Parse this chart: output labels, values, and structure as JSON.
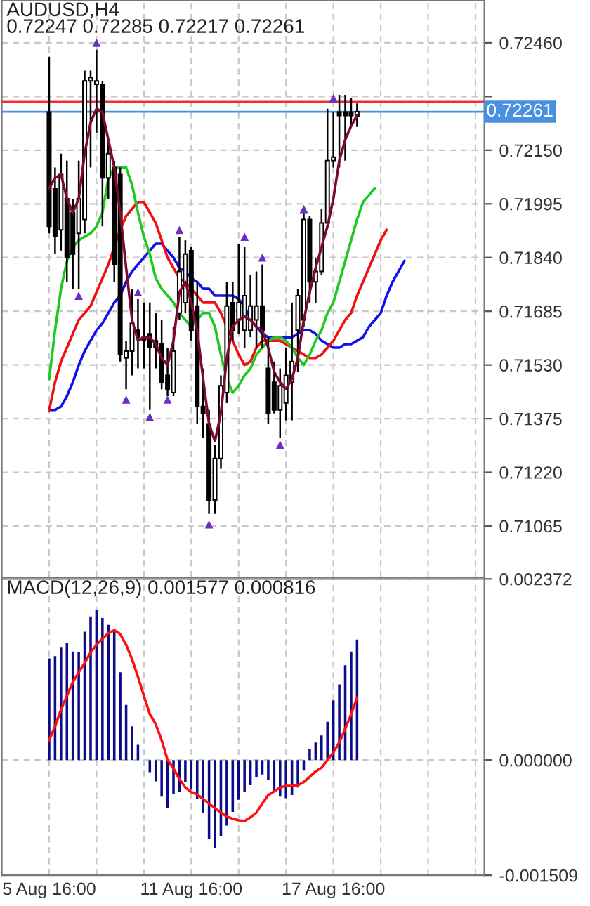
{
  "chart_data": [
    {
      "type": "candlestick",
      "title": "AUDUSD,H4",
      "subtitle": "0.72247 0.72285 0.72217 0.72261",
      "color": "#000000",
      "categories": [
        null,
        null,
        null,
        null,
        null,
        null,
        null,
        null,
        null,
        null,
        null,
        null,
        null,
        null,
        null,
        null,
        null,
        null,
        null,
        null,
        null,
        null,
        null,
        null,
        null,
        null,
        null,
        null,
        null,
        null,
        null,
        null,
        null,
        null,
        null,
        null,
        null,
        null,
        null,
        null,
        null,
        null,
        null,
        null,
        null,
        null,
        null,
        null,
        null,
        null,
        null,
        null,
        null,
        null,
        null,
        null,
        null,
        null,
        null,
        null,
        null,
        null,
        null,
        null,
        null,
        null,
        null,
        null,
        null,
        null,
        null,
        null,
        null,
        null
      ],
      "ohlc": [
        [
          0.7226,
          0.7242,
          0.7191,
          0.7193
        ],
        [
          0.7204,
          0.721,
          0.7185,
          0.719
        ],
        [
          0.7192,
          0.7214,
          0.7186,
          0.7208
        ],
        [
          0.7201,
          0.7212,
          0.7177,
          0.7184
        ],
        [
          0.7197,
          0.7201,
          0.7175,
          0.7185
        ],
        [
          0.7191,
          0.7212,
          0.7175,
          0.7201
        ],
        [
          0.7195,
          0.7238,
          0.7191,
          0.7235
        ],
        [
          0.7235,
          0.7238,
          0.721,
          0.7236
        ],
        [
          0.7234,
          0.7244,
          0.722,
          0.7235
        ],
        [
          0.7234,
          0.7235,
          0.7193,
          0.7207
        ],
        [
          0.7207,
          0.7218,
          0.7201,
          0.7214
        ],
        [
          0.721,
          0.7212,
          0.7177,
          0.7182
        ],
        [
          0.7208,
          0.721,
          0.7154,
          0.7156
        ],
        [
          0.7155,
          0.716,
          0.7146,
          0.7157
        ],
        [
          0.7157,
          0.7175,
          0.715,
          0.7165
        ],
        [
          0.7163,
          0.7172,
          0.7152,
          0.7161
        ],
        [
          0.7161,
          0.7171,
          0.7152,
          0.716
        ],
        [
          0.7162,
          0.7171,
          0.714,
          0.7158
        ],
        [
          0.716,
          0.7168,
          0.7152,
          0.7158
        ],
        [
          0.7159,
          0.7166,
          0.7146,
          0.7148
        ],
        [
          0.715,
          0.7158,
          0.7144,
          0.7146
        ],
        [
          0.7145,
          0.7164,
          0.7144,
          0.7157
        ],
        [
          0.7168,
          0.719,
          0.7166,
          0.718
        ],
        [
          0.7171,
          0.7189,
          0.7168,
          0.7185
        ],
        [
          0.7186,
          0.7187,
          0.716,
          0.7163
        ],
        [
          0.717,
          0.7177,
          0.7136,
          0.7141
        ],
        [
          0.7141,
          0.7152,
          0.7132,
          0.7139
        ],
        [
          0.7136,
          0.714,
          0.711,
          0.7114
        ],
        [
          0.7114,
          0.713,
          0.711,
          0.7126
        ],
        [
          0.7126,
          0.715,
          0.7123,
          0.7147
        ],
        [
          0.7145,
          0.7177,
          0.7142,
          0.717
        ],
        [
          0.7171,
          0.7177,
          0.716,
          0.7163
        ],
        [
          0.7166,
          0.7188,
          0.7162,
          0.7171
        ],
        [
          0.7163,
          0.7187,
          0.7158,
          0.7173
        ],
        [
          0.7163,
          0.7179,
          0.7161,
          0.717
        ],
        [
          0.7166,
          0.718,
          0.7158,
          0.717
        ],
        [
          0.717,
          0.7182,
          0.7158,
          0.7163
        ],
        [
          0.7152,
          0.7161,
          0.7136,
          0.7139
        ],
        [
          0.7148,
          0.7154,
          0.7139,
          0.714
        ],
        [
          0.714,
          0.7152,
          0.7132,
          0.7147
        ],
        [
          0.7142,
          0.7158,
          0.7137,
          0.715
        ],
        [
          0.7148,
          0.7171,
          0.7137,
          0.7154
        ],
        [
          0.7163,
          0.7175,
          0.7151,
          0.7173
        ],
        [
          0.7166,
          0.7197,
          0.7164,
          0.7195
        ],
        [
          0.7195,
          0.7196,
          0.7171,
          0.7177
        ],
        [
          0.7177,
          0.7184,
          0.7171,
          0.718
        ],
        [
          0.718,
          0.7198,
          0.7179,
          0.7194
        ],
        [
          0.7194,
          0.7227,
          0.7193,
          0.7212
        ],
        [
          0.7212,
          0.7226,
          0.721,
          0.7213
        ],
        [
          0.7226,
          0.7231,
          0.721,
          0.7225
        ],
        [
          0.7226,
          0.7231,
          0.7212,
          0.7225
        ],
        [
          0.7226,
          0.723,
          0.7222,
          0.7225
        ],
        [
          0.72247,
          0.72285,
          0.72217,
          0.72261
        ],
        null,
        null,
        null,
        null,
        null,
        null,
        null,
        null,
        null,
        null,
        null,
        null,
        null,
        null,
        null,
        null,
        null,
        null,
        null,
        null,
        null
      ],
      "series": [
        {
          "type": "line",
          "color": "#1010ee",
          "values": [
            0.714,
            0.714,
            0.7141,
            0.7144,
            0.7148,
            0.7153,
            0.7157,
            0.716,
            0.7163,
            0.7165,
            0.7168,
            0.7171,
            0.7173,
            0.7177,
            0.718,
            0.7182,
            0.7184,
            0.7186,
            0.7188,
            0.7188,
            0.7186,
            0.7184,
            0.7181,
            0.718,
            0.7178,
            0.7177,
            0.7175,
            0.7175,
            0.7173,
            0.7173,
            0.7173,
            0.7173,
            0.7172,
            0.717,
            0.7166,
            0.7164,
            0.7162,
            0.7161,
            0.7161,
            0.7161,
            0.7161,
            0.7161,
            0.7162,
            0.7163,
            0.7163,
            0.7162,
            0.716,
            0.7159,
            0.7158,
            0.7158,
            0.7159,
            0.7159,
            0.716,
            0.7161,
            0.7164,
            0.7166,
            0.7168,
            0.7173,
            0.7177,
            0.718,
            0.7183,
            null,
            null,
            null,
            null,
            null,
            null,
            null,
            null,
            null,
            null,
            null,
            null,
            null
          ]
        },
        {
          "type": "line",
          "color": "#f01010",
          "values": [
            0.714,
            0.7148,
            0.7154,
            0.7158,
            0.7162,
            0.7166,
            0.7168,
            0.717,
            0.7174,
            0.7178,
            0.7182,
            0.7187,
            0.7192,
            0.7196,
            0.7198,
            0.72,
            0.72,
            0.7197,
            0.7194,
            0.7189,
            0.7184,
            0.7181,
            0.7178,
            0.7177,
            0.7175,
            0.7173,
            0.7171,
            0.7171,
            0.7171,
            0.7168,
            0.7164,
            0.716,
            0.7156,
            0.7153,
            0.7154,
            0.7158,
            0.716,
            0.716,
            0.716,
            0.716,
            0.7159,
            0.7158,
            0.7157,
            0.7156,
            0.7155,
            0.7155,
            0.7156,
            0.7158,
            0.716,
            0.7163,
            0.7166,
            0.7168,
            0.7173,
            0.7177,
            0.7181,
            0.7185,
            0.7189,
            0.7192,
            null,
            null,
            null,
            null,
            null,
            null,
            null,
            null,
            null,
            null,
            null,
            null,
            null,
            null,
            null,
            null
          ]
        },
        {
          "type": "line",
          "color": "#1ec81e",
          "values": [
            0.7149,
            0.7163,
            0.7175,
            0.7183,
            0.7187,
            0.7189,
            0.719,
            0.7191,
            0.7193,
            0.7197,
            0.7207,
            0.721,
            0.721,
            0.721,
            0.7205,
            0.7197,
            0.719,
            0.7185,
            0.7178,
            0.7175,
            0.7173,
            0.7171,
            0.7168,
            0.7166,
            0.7164,
            0.7166,
            0.7168,
            0.7168,
            0.7164,
            0.7156,
            0.7149,
            0.7145,
            0.7147,
            0.715,
            0.7152,
            0.7156,
            0.7158,
            0.716,
            0.7161,
            0.7161,
            0.716,
            0.7158,
            0.7155,
            0.7153,
            0.7156,
            0.716,
            0.7163,
            0.7168,
            0.7171,
            0.7177,
            0.7183,
            0.7189,
            0.7195,
            0.72,
            0.7202,
            0.7204,
            null,
            null,
            null,
            null,
            null,
            null,
            null,
            null,
            null,
            null,
            null,
            null,
            null,
            null,
            null,
            null,
            null,
            null
          ]
        },
        {
          "type": "line",
          "color": "#7d0a2a",
          "values": [
            0.7204,
            0.7207,
            0.7208,
            0.7201,
            0.7197,
            0.7201,
            0.7214,
            0.7223,
            0.7227,
            0.7226,
            0.7218,
            0.721,
            0.7197,
            0.7181,
            0.7166,
            0.716,
            0.7161,
            0.7161,
            0.7159,
            0.7155,
            0.7153,
            0.716,
            0.7174,
            0.7177,
            0.7171,
            0.7163,
            0.7149,
            0.7136,
            0.7131,
            0.7139,
            0.7155,
            0.7164,
            0.7166,
            0.7167,
            0.7166,
            0.7164,
            0.7163,
            0.7158,
            0.7151,
            0.7148,
            0.7146,
            0.7149,
            0.7155,
            0.7166,
            0.7174,
            0.7181,
            0.7187,
            0.7193,
            0.7201,
            0.7212,
            0.7218,
            0.7222,
            0.7225,
            null,
            null,
            null,
            null,
            null,
            null,
            null,
            null,
            null,
            null,
            null,
            null,
            null,
            null,
            null,
            null,
            null,
            null,
            null,
            null,
            null
          ]
        },
        {
          "type": "scatter",
          "marker": "triangle",
          "color": "#6a30c0",
          "values": [
            null,
            null,
            null,
            null,
            null,
            null,
            null,
            null,
            0.7246,
            null,
            null,
            null,
            null,
            null,
            null,
            0.7174,
            null,
            null,
            null,
            null,
            null,
            null,
            0.7192,
            null,
            null,
            null,
            null,
            null,
            null,
            null,
            null,
            null,
            null,
            0.719,
            null,
            null,
            0.7184,
            null,
            null,
            null,
            null,
            null,
            null,
            0.7198,
            null,
            null,
            null,
            null,
            0.723,
            null,
            null,
            null,
            null,
            null,
            null,
            null,
            null,
            null,
            null,
            null,
            null,
            null,
            null,
            null,
            null,
            null,
            null,
            null,
            null,
            null,
            null,
            null,
            null,
            null
          ]
        },
        {
          "type": "scatter",
          "marker": "triangle",
          "color": "#6a30c0",
          "values": [
            null,
            null,
            null,
            null,
            null,
            0.7173,
            null,
            null,
            null,
            null,
            null,
            null,
            null,
            0.7143,
            null,
            null,
            null,
            0.7138,
            null,
            null,
            0.7143,
            null,
            null,
            null,
            null,
            null,
            null,
            0.7107,
            null,
            null,
            null,
            null,
            null,
            null,
            null,
            null,
            null,
            null,
            null,
            0.713,
            null,
            null,
            null,
            null,
            null,
            null,
            null,
            null,
            null,
            null,
            null,
            null,
            null,
            null,
            null,
            null,
            null,
            null,
            null,
            null,
            null,
            null,
            null,
            null,
            null,
            null,
            null,
            null,
            null,
            null,
            null,
            null,
            null,
            null
          ]
        }
      ],
      "ylim": [
        0.70917,
        0.72583
      ],
      "yticks": [
        {
          "value": 0.71065,
          "label": "0.71065"
        },
        {
          "value": 0.7122,
          "label": "0.71220"
        },
        {
          "value": 0.71375,
          "label": "0.71375"
        },
        {
          "value": 0.7153,
          "label": "0.71530"
        },
        {
          "value": 0.71685,
          "label": "0.71685"
        },
        {
          "value": 0.7184,
          "label": "0.71840"
        },
        {
          "value": 0.71995,
          "label": "0.71995"
        },
        {
          "value": 0.7215,
          "label": "0.72150"
        },
        {
          "value": 0.72305,
          "label": null
        },
        {
          "value": 0.7246,
          "label": "0.72460"
        }
      ],
      "ref_lines": [
        {
          "axis": "y",
          "value": 0.7229,
          "color": "#f03030"
        },
        {
          "axis": "y",
          "value": 0.72261,
          "label": "0.72261",
          "color": "#4a90e0"
        }
      ],
      "grid": true,
      "tick_labels": "y"
    },
    {
      "type": "bar",
      "title": "MACD(12,26,9) 0.001577 0.000816",
      "categories": [
        "5 Aug 16:00",
        null,
        null,
        null,
        null,
        null,
        null,
        null,
        null,
        null,
        null,
        null,
        null,
        null,
        null,
        null,
        null,
        null,
        null,
        null,
        null,
        null,
        null,
        null,
        "11 Aug 16:00",
        null,
        null,
        null,
        null,
        null,
        null,
        null,
        null,
        null,
        null,
        null,
        null,
        null,
        null,
        null,
        null,
        null,
        null,
        null,
        null,
        null,
        null,
        null,
        "17 Aug 16:00",
        null,
        null,
        null,
        null,
        null,
        null,
        null,
        null,
        null,
        null,
        null,
        null,
        null,
        null,
        null,
        null,
        null,
        null,
        null,
        null,
        null,
        null,
        null,
        null,
        null
      ],
      "series": [
        {
          "type": "bar",
          "color": "#0c0c8a",
          "values": [
            0.00133,
            0.00136,
            0.00148,
            0.00153,
            0.00142,
            0.00141,
            0.00168,
            0.00188,
            0.00196,
            0.00186,
            0.00177,
            0.0017,
            0.00115,
            0.00072,
            0.00044,
            0.0002,
            0,
            -0.00016,
            -0.00028,
            -0.00048,
            -0.00063,
            -0.00045,
            -0.00042,
            -0.00029,
            -0.00039,
            -0.00051,
            -0.00069,
            -0.00103,
            -0.00115,
            -0.001,
            -0.00086,
            -0.00068,
            -0.00052,
            -0.00042,
            -0.00033,
            -0.00023,
            -0.00019,
            -0.00026,
            -0.00042,
            -0.00048,
            -0.0005,
            -0.00046,
            -0.00036,
            -0.00014,
            0.00014,
            0.00023,
            0.00032,
            0.0005,
            0.00078,
            0.00099,
            0.00124,
            0.00142,
            0.001577,
            null,
            null,
            null,
            null,
            null,
            null,
            null,
            null,
            null,
            null,
            null,
            null,
            null,
            null,
            null,
            null,
            null,
            null,
            null,
            null,
            null
          ]
        },
        {
          "type": "line",
          "color": "#ff1010",
          "values": [
            0.00026,
            0.00044,
            0.00066,
            0.00084,
            0.00102,
            0.00115,
            0.00127,
            0.00141,
            0.00151,
            0.00159,
            0.00166,
            0.0017,
            0.00165,
            0.00151,
            0.00132,
            0.00109,
            0.00084,
            0.0006,
            0.00047,
            0.00026,
            0,
            -0.00011,
            -0.00025,
            -0.00036,
            -0.00042,
            -0.00045,
            -0.00051,
            -0.00057,
            -0.00063,
            -0.00069,
            -0.00074,
            -0.00077,
            -0.00079,
            -0.0008,
            -0.00075,
            -0.00069,
            -0.00057,
            -0.00046,
            -0.00041,
            -0.00036,
            -0.00034,
            -0.00034,
            -0.00033,
            -0.00029,
            -0.00022,
            -0.00015,
            -0.0001,
            0,
            0.0001,
            0.00023,
            0.00041,
            0.0006,
            0.000816,
            null,
            null,
            null,
            null,
            null,
            null,
            null,
            null,
            null,
            null,
            null,
            null,
            null,
            null,
            null,
            null,
            null,
            null,
            null,
            null,
            null
          ]
        }
      ],
      "ylim": [
        -0.001509,
        0.002372
      ],
      "yticks": [
        {
          "value": -0.001509,
          "label": "-0.001509"
        },
        {
          "value": 0,
          "label": "0.000000"
        },
        {
          "value": 0.002372,
          "label": "0.002372"
        }
      ],
      "grid": true
    }
  ]
}
